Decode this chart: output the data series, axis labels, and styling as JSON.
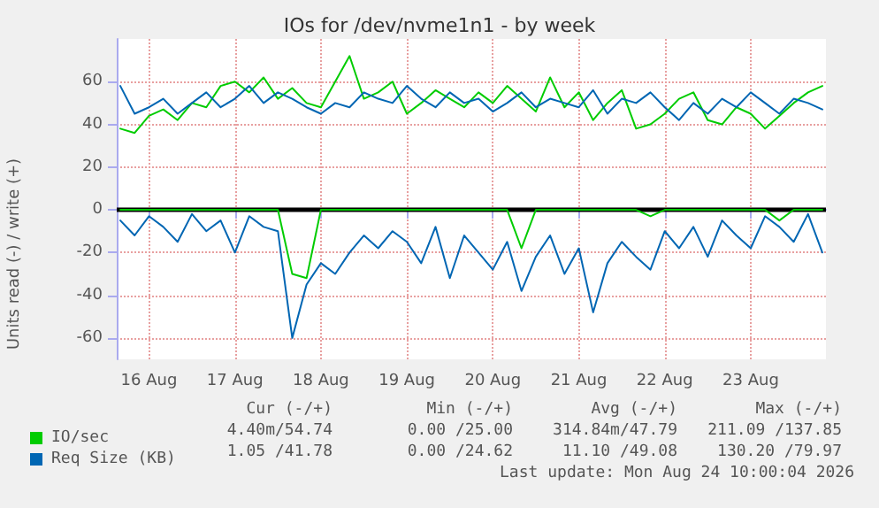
{
  "chart_data": {
    "type": "line",
    "title": "IOs for /dev/nvme1n1 - by week",
    "ylabel": "Units read (-) / write (+)",
    "x": [
      "2026-08-16T04:00",
      "2026-08-16T08:00",
      "2026-08-16T12:00",
      "2026-08-16T16:00",
      "2026-08-16T20:00",
      "2026-08-17T00:00",
      "2026-08-17T04:00",
      "2026-08-17T08:00",
      "2026-08-17T12:00",
      "2026-08-17T16:00",
      "2026-08-17T20:00",
      "2026-08-18T00:00",
      "2026-08-18T04:00",
      "2026-08-18T08:00",
      "2026-08-18T12:00",
      "2026-08-18T16:00",
      "2026-08-18T20:00",
      "2026-08-19T00:00",
      "2026-08-19T04:00",
      "2026-08-19T08:00",
      "2026-08-19T12:00",
      "2026-08-19T16:00",
      "2026-08-19T20:00",
      "2026-08-20T00:00",
      "2026-08-20T04:00",
      "2026-08-20T08:00",
      "2026-08-20T12:00",
      "2026-08-20T16:00",
      "2026-08-20T20:00",
      "2026-08-21T00:00",
      "2026-08-21T04:00",
      "2026-08-21T08:00",
      "2026-08-21T12:00",
      "2026-08-21T16:00",
      "2026-08-21T20:00",
      "2026-08-22T00:00",
      "2026-08-22T04:00",
      "2026-08-22T08:00",
      "2026-08-22T12:00",
      "2026-08-22T16:00",
      "2026-08-22T20:00",
      "2026-08-23T00:00",
      "2026-08-23T04:00",
      "2026-08-23T08:00",
      "2026-08-23T12:00",
      "2026-08-23T16:00",
      "2026-08-23T20:00",
      "2026-08-24T00:00",
      "2026-08-24T04:00",
      "2026-08-24T08:00"
    ],
    "series": [
      {
        "color": "#00cc00",
        "values": [
          0,
          0,
          0,
          0,
          0,
          0,
          0,
          0,
          0,
          0,
          0,
          0,
          -30,
          -32,
          0,
          0,
          0,
          0,
          0,
          0,
          0,
          0,
          0,
          0,
          0,
          0,
          0,
          0,
          -18,
          0,
          0,
          0,
          0,
          0,
          0,
          0,
          0,
          -3,
          0,
          0,
          0,
          0,
          0,
          0,
          0,
          0,
          -5,
          0,
          0,
          0
        ]
      },
      {
        "color": "#0066b3",
        "values": [
          -5,
          -12,
          -3,
          -8,
          -15,
          -2,
          -10,
          -5,
          -20,
          -3,
          -8,
          -10,
          -60,
          -35,
          -25,
          -30,
          -20,
          -12,
          -18,
          -10,
          -15,
          -25,
          -8,
          -32,
          -12,
          -20,
          -28,
          -15,
          -38,
          -22,
          -12,
          -30,
          -18,
          -48,
          -25,
          -15,
          -22,
          -28,
          -10,
          -18,
          -8,
          -22,
          -5,
          -12,
          -18,
          -3,
          -8,
          -15,
          -2,
          -20
        ]
      },
      {
        "name": "IO/sec",
        "color": "#00cc00",
        "values": [
          38,
          36,
          44,
          47,
          42,
          50,
          48,
          58,
          60,
          55,
          62,
          52,
          57,
          50,
          48,
          60,
          72,
          52,
          55,
          60,
          45,
          50,
          56,
          52,
          48,
          55,
          50,
          58,
          52,
          46,
          62,
          48,
          55,
          42,
          50,
          56,
          38,
          40,
          45,
          52,
          55,
          42,
          40,
          48,
          45,
          38,
          44,
          50,
          55,
          58
        ]
      },
      {
        "name": "Req Size (KB)",
        "color": "#0066b3",
        "values": [
          58,
          45,
          48,
          52,
          45,
          50,
          55,
          48,
          52,
          58,
          50,
          55,
          52,
          48,
          45,
          50,
          48,
          55,
          52,
          50,
          58,
          52,
          48,
          55,
          50,
          52,
          46,
          50,
          55,
          48,
          52,
          50,
          48,
          56,
          45,
          52,
          50,
          55,
          48,
          42,
          50,
          45,
          52,
          48,
          55,
          50,
          45,
          52,
          50,
          47
        ]
      }
    ],
    "xlim": [
      "2026-08-16T03:00",
      "2026-08-24T09:00"
    ],
    "xticks": [
      {
        "value": "2026-08-16T12:00",
        "label": "16 Aug"
      },
      {
        "value": "2026-08-17T12:00",
        "label": "17 Aug"
      },
      {
        "value": "2026-08-18T12:00",
        "label": "18 Aug"
      },
      {
        "value": "2026-08-19T12:00",
        "label": "19 Aug"
      },
      {
        "value": "2026-08-20T12:00",
        "label": "20 Aug"
      },
      {
        "value": "2026-08-21T12:00",
        "label": "21 Aug"
      },
      {
        "value": "2026-08-22T12:00",
        "label": "22 Aug"
      },
      {
        "value": "2026-08-23T12:00",
        "label": "23 Aug"
      }
    ],
    "ylim": [
      -70,
      80
    ],
    "yticks": [
      -60,
      -40,
      -20,
      0,
      20,
      40,
      60
    ],
    "ref_lines": [
      {
        "axis": "y",
        "value": 0,
        "color": "#000000"
      }
    ],
    "grid": true,
    "legend": "bottom left",
    "marker": "none",
    "line_style": "solid",
    "annotations": [
      "Cur (-/+)",
      "Min (-/+)",
      "Avg (-/+)",
      "Max (-/+)",
      "4.40m/54.74",
      "0.00 /25.00",
      "314.84m/47.79",
      "211.09 /137.85",
      "1.05 /41.78",
      "0.00 /24.62",
      "11.10 /49.08",
      "130.20 /79.97",
      "Last update: Mon Aug 24 10:00:04 2026"
    ]
  }
}
